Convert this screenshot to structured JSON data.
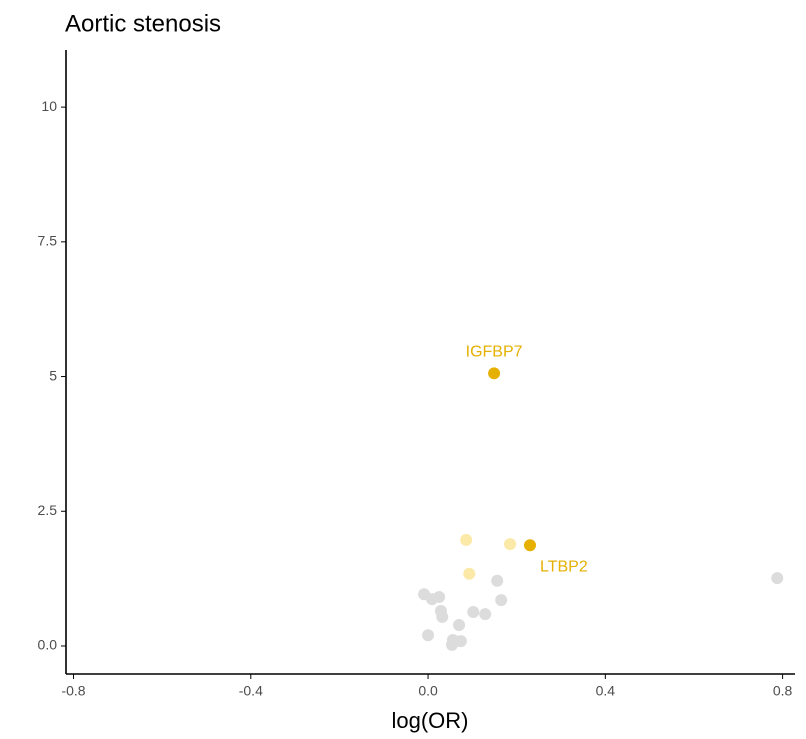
{
  "chart_data": {
    "type": "scatter",
    "title": "Aortic stenosis",
    "x_label": "log(OR)",
    "xlim": [
      -0.817,
      0.828
    ],
    "ylim": [
      -0.52,
      11.06
    ],
    "xticks": [
      -0.8,
      -0.4,
      {
        "value": 0,
        "label": "0.0"
      },
      0.4,
      0.8
    ],
    "yticks": [
      {
        "value": 0,
        "label": "0.0"
      },
      2.5,
      5,
      7.5,
      10
    ],
    "series": [
      {
        "name": "IGFBP7",
        "color": "#e5b000",
        "x": [
          0.149
        ],
        "y": [
          5.06
        ]
      },
      {
        "name": "LTBP2",
        "color": "#e5b000",
        "x": [
          0.23
        ],
        "y": [
          1.87
        ]
      },
      {
        "color": "#fbe9a8",
        "x": [
          0.086,
          0.185,
          0.093
        ],
        "y": [
          1.97,
          1.89,
          1.34
        ]
      },
      {
        "color": "#dcdcdc",
        "x": [
          -0.009,
          0.009,
          0.025,
          0.029,
          0.032,
          0.156,
          0.165,
          0.102,
          0.129,
          0.07,
          0.0,
          0.056,
          0.074,
          0.054,
          0.788
        ],
        "y": [
          0.96,
          0.87,
          0.91,
          0.65,
          0.54,
          1.21,
          0.85,
          0.63,
          0.59,
          0.39,
          0.2,
          0.11,
          0.09,
          0.02,
          1.26
        ]
      }
    ]
  }
}
